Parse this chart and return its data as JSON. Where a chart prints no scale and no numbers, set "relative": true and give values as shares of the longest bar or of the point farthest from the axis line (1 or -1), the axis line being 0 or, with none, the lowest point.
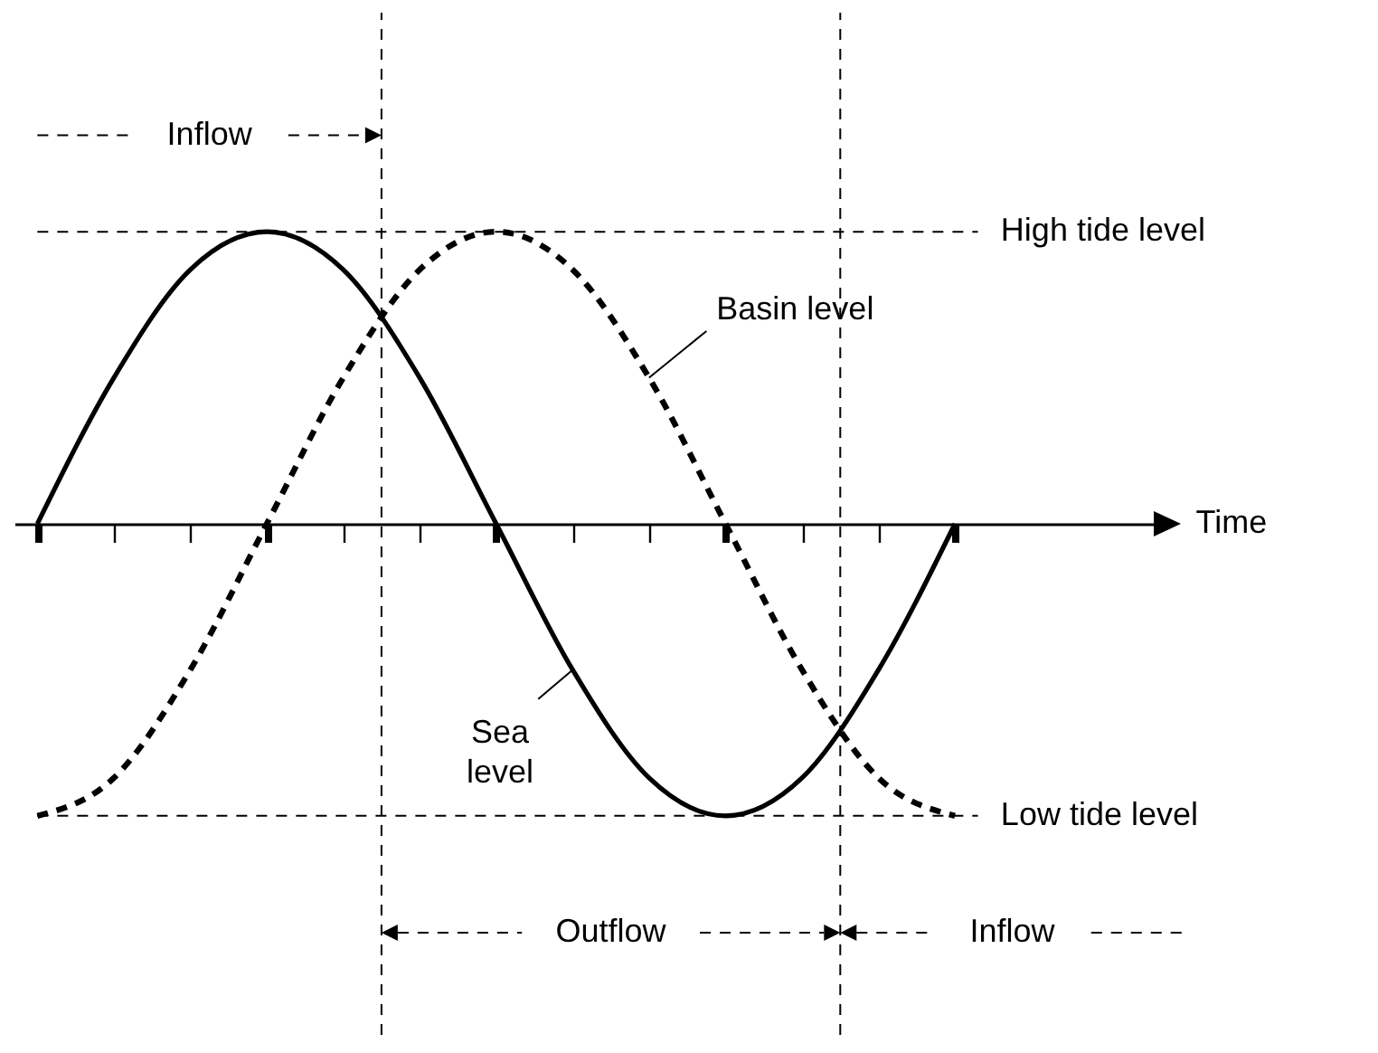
{
  "chart_data": {
    "type": "line",
    "relative": true,
    "categories": [
      null,
      null,
      null,
      null,
      null,
      null,
      null,
      null,
      null,
      null,
      null,
      null,
      null
    ],
    "series": [
      {
        "name": "Sea level",
        "color": "#000000",
        "line_style": "solid",
        "values": [
          0,
          0.5,
          0.87,
          1,
          0.87,
          0.5,
          0,
          -0.5,
          -0.87,
          -1,
          -0.87,
          -0.5,
          0
        ]
      },
      {
        "name": "Basin level",
        "color": "#000000",
        "line_style": "dashed",
        "values": [
          -1,
          -0.87,
          -0.5,
          0,
          0.5,
          0.87,
          1,
          0.87,
          0.5,
          0,
          -0.5,
          -0.87,
          -1
        ]
      }
    ],
    "annotations": [
      "Inflow",
      "High tide level",
      "Low tide level",
      "Outflow",
      "Inflow",
      "Time"
    ]
  }
}
